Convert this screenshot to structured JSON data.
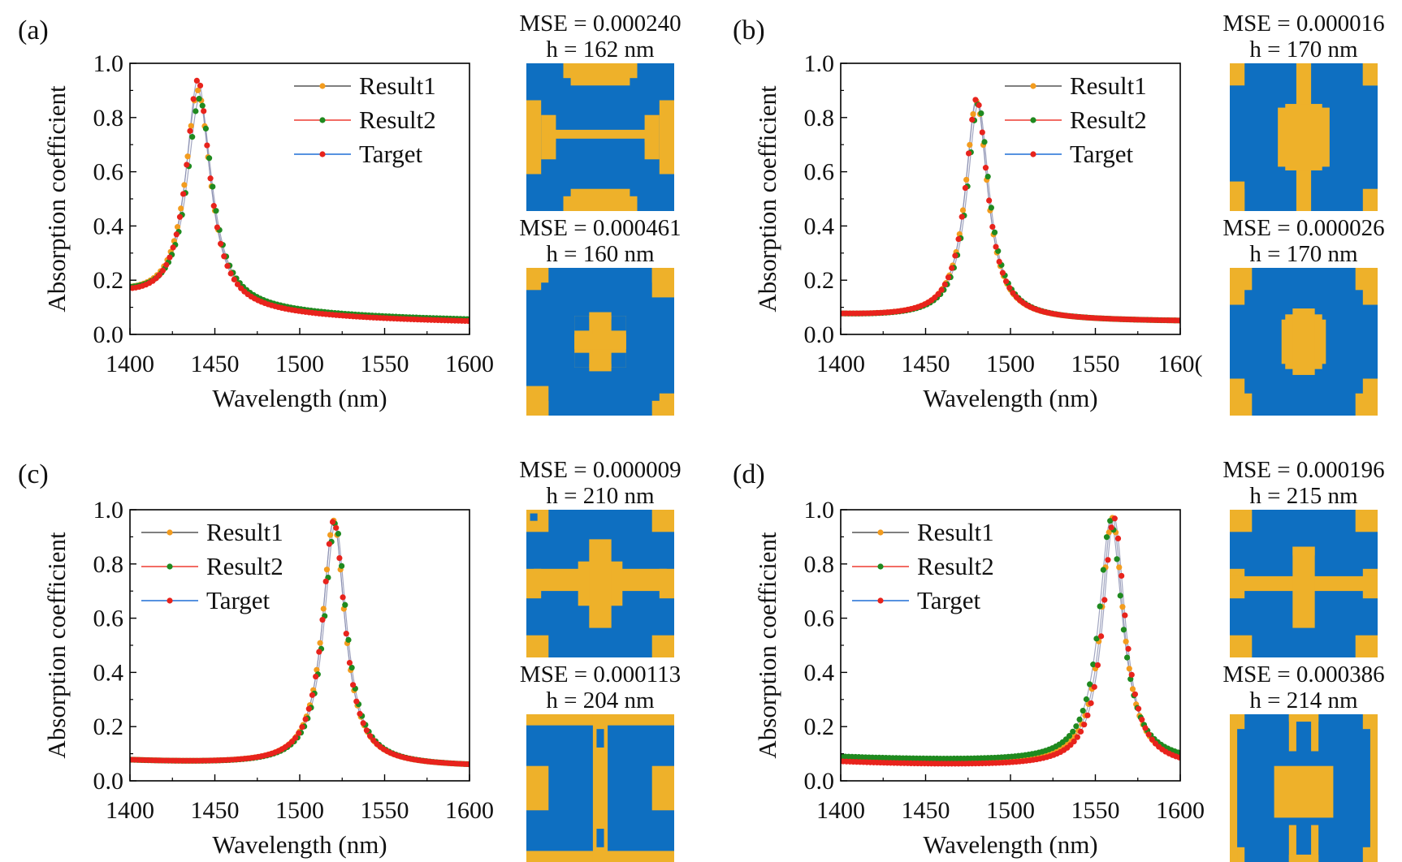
{
  "colors": {
    "result1": "#f39c1e",
    "result2": "#1f8a1f",
    "target": "#e8231c",
    "line_result1": "#555555",
    "line_result2": "#ee3b30",
    "line_target": "#1f6fd6",
    "pattern_blue": "#0e6fc1",
    "pattern_gold": "#eeb12a"
  },
  "chart_data": [
    {
      "panel": "(a)",
      "type": "line",
      "xlabel": "Wavelength (nm)",
      "ylabel": "Absorption coefficient",
      "xlim": [
        1400,
        1600
      ],
      "ylim": [
        0,
        1
      ],
      "xticks": [
        "1400",
        "1450",
        "1500",
        "1550",
        "1600"
      ],
      "yticks": [
        "0.0",
        "0.2",
        "0.4",
        "0.6",
        "0.8",
        "1.0"
      ],
      "legend": [
        "Result1",
        "Result2",
        "Target"
      ],
      "legend_position": "top-right",
      "series": [
        {
          "name": "Result1",
          "center": 1440,
          "width": 9,
          "peak": 0.9,
          "base": 0.045
        },
        {
          "name": "Result2",
          "center": 1441,
          "width": 9,
          "peak": 0.87,
          "base": 0.048
        },
        {
          "name": "Target",
          "center": 1440,
          "width": 8.5,
          "peak": 0.94,
          "base": 0.04
        }
      ],
      "insets": [
        {
          "mse": "MSE = 0.000240",
          "h": "h = 162 nm"
        },
        {
          "mse": "MSE = 0.000461",
          "h": "h = 160 nm"
        }
      ]
    },
    {
      "panel": "(b)",
      "type": "line",
      "xlabel": "Wavelength (nm)",
      "ylabel": "Absorption coefficient",
      "xlim": [
        1400,
        1600
      ],
      "ylim": [
        0,
        1
      ],
      "xticks": [
        "1400",
        "1450",
        "1500",
        "1550",
        "160("
      ],
      "yticks": [
        "0.0",
        "0.2",
        "0.4",
        "0.6",
        "0.8",
        "1.0"
      ],
      "legend": [
        "Result1",
        "Result2",
        "Target"
      ],
      "legend_position": "top-right",
      "series": [
        {
          "name": "Result1",
          "center": 1480,
          "width": 8,
          "peak": 0.86,
          "base": 0.05
        },
        {
          "name": "Result2",
          "center": 1481,
          "width": 8,
          "peak": 0.85,
          "base": 0.05
        },
        {
          "name": "Target",
          "center": 1480,
          "width": 8,
          "peak": 0.87,
          "base": 0.05
        }
      ],
      "insets": [
        {
          "mse": "MSE = 0.000016",
          "h": "h = 170 nm"
        },
        {
          "mse": "MSE = 0.000026",
          "h": "h = 170 nm"
        }
      ]
    },
    {
      "panel": "(c)",
      "type": "line",
      "xlabel": "Wavelength (nm)",
      "ylabel": "Absorption coefficient",
      "xlim": [
        1400,
        1600
      ],
      "ylim": [
        0,
        1
      ],
      "xticks": [
        "1400",
        "1450",
        "1500",
        "1550",
        "1600"
      ],
      "yticks": [
        "0.0",
        "0.2",
        "0.4",
        "0.6",
        "0.8",
        "1.0"
      ],
      "legend": [
        "Result1",
        "Result2",
        "Target"
      ],
      "legend_position": "top-left",
      "series": [
        {
          "name": "Result1",
          "center": 1520,
          "width": 8,
          "peak": 0.96,
          "base": 0.055
        },
        {
          "name": "Result2",
          "center": 1521,
          "width": 8,
          "peak": 0.95,
          "base": 0.055
        },
        {
          "name": "Target",
          "center": 1520,
          "width": 8,
          "peak": 0.96,
          "base": 0.055
        }
      ],
      "insets": [
        {
          "mse": "MSE = 0.000009",
          "h": "h = 210 nm"
        },
        {
          "mse": "MSE = 0.000113",
          "h": "h = 204 nm"
        }
      ]
    },
    {
      "panel": "(d)",
      "type": "line",
      "xlabel": "Wavelength (nm)",
      "ylabel": "Absorption coefficient",
      "xlim": [
        1400,
        1600
      ],
      "ylim": [
        0,
        1
      ],
      "xticks": [
        "1400",
        "1450",
        "1500",
        "1550",
        "1600"
      ],
      "yticks": [
        "0.0",
        "0.2",
        "0.4",
        "0.6",
        "0.8",
        "1.0"
      ],
      "legend": [
        "Result1",
        "Result2",
        "Target"
      ],
      "legend_position": "top-left",
      "series": [
        {
          "name": "Result1",
          "center": 1560,
          "width": 8,
          "peak": 0.97,
          "base": 0.06
        },
        {
          "name": "Result2",
          "center": 1559,
          "width": 8.5,
          "peak": 0.96,
          "base": 0.07
        },
        {
          "name": "Target",
          "center": 1561,
          "width": 8,
          "peak": 0.97,
          "base": 0.05
        }
      ],
      "insets": [
        {
          "mse": "MSE = 0.000196",
          "h": "h = 215 nm"
        },
        {
          "mse": "MSE = 0.000386",
          "h": "h = 214 nm"
        }
      ]
    }
  ]
}
